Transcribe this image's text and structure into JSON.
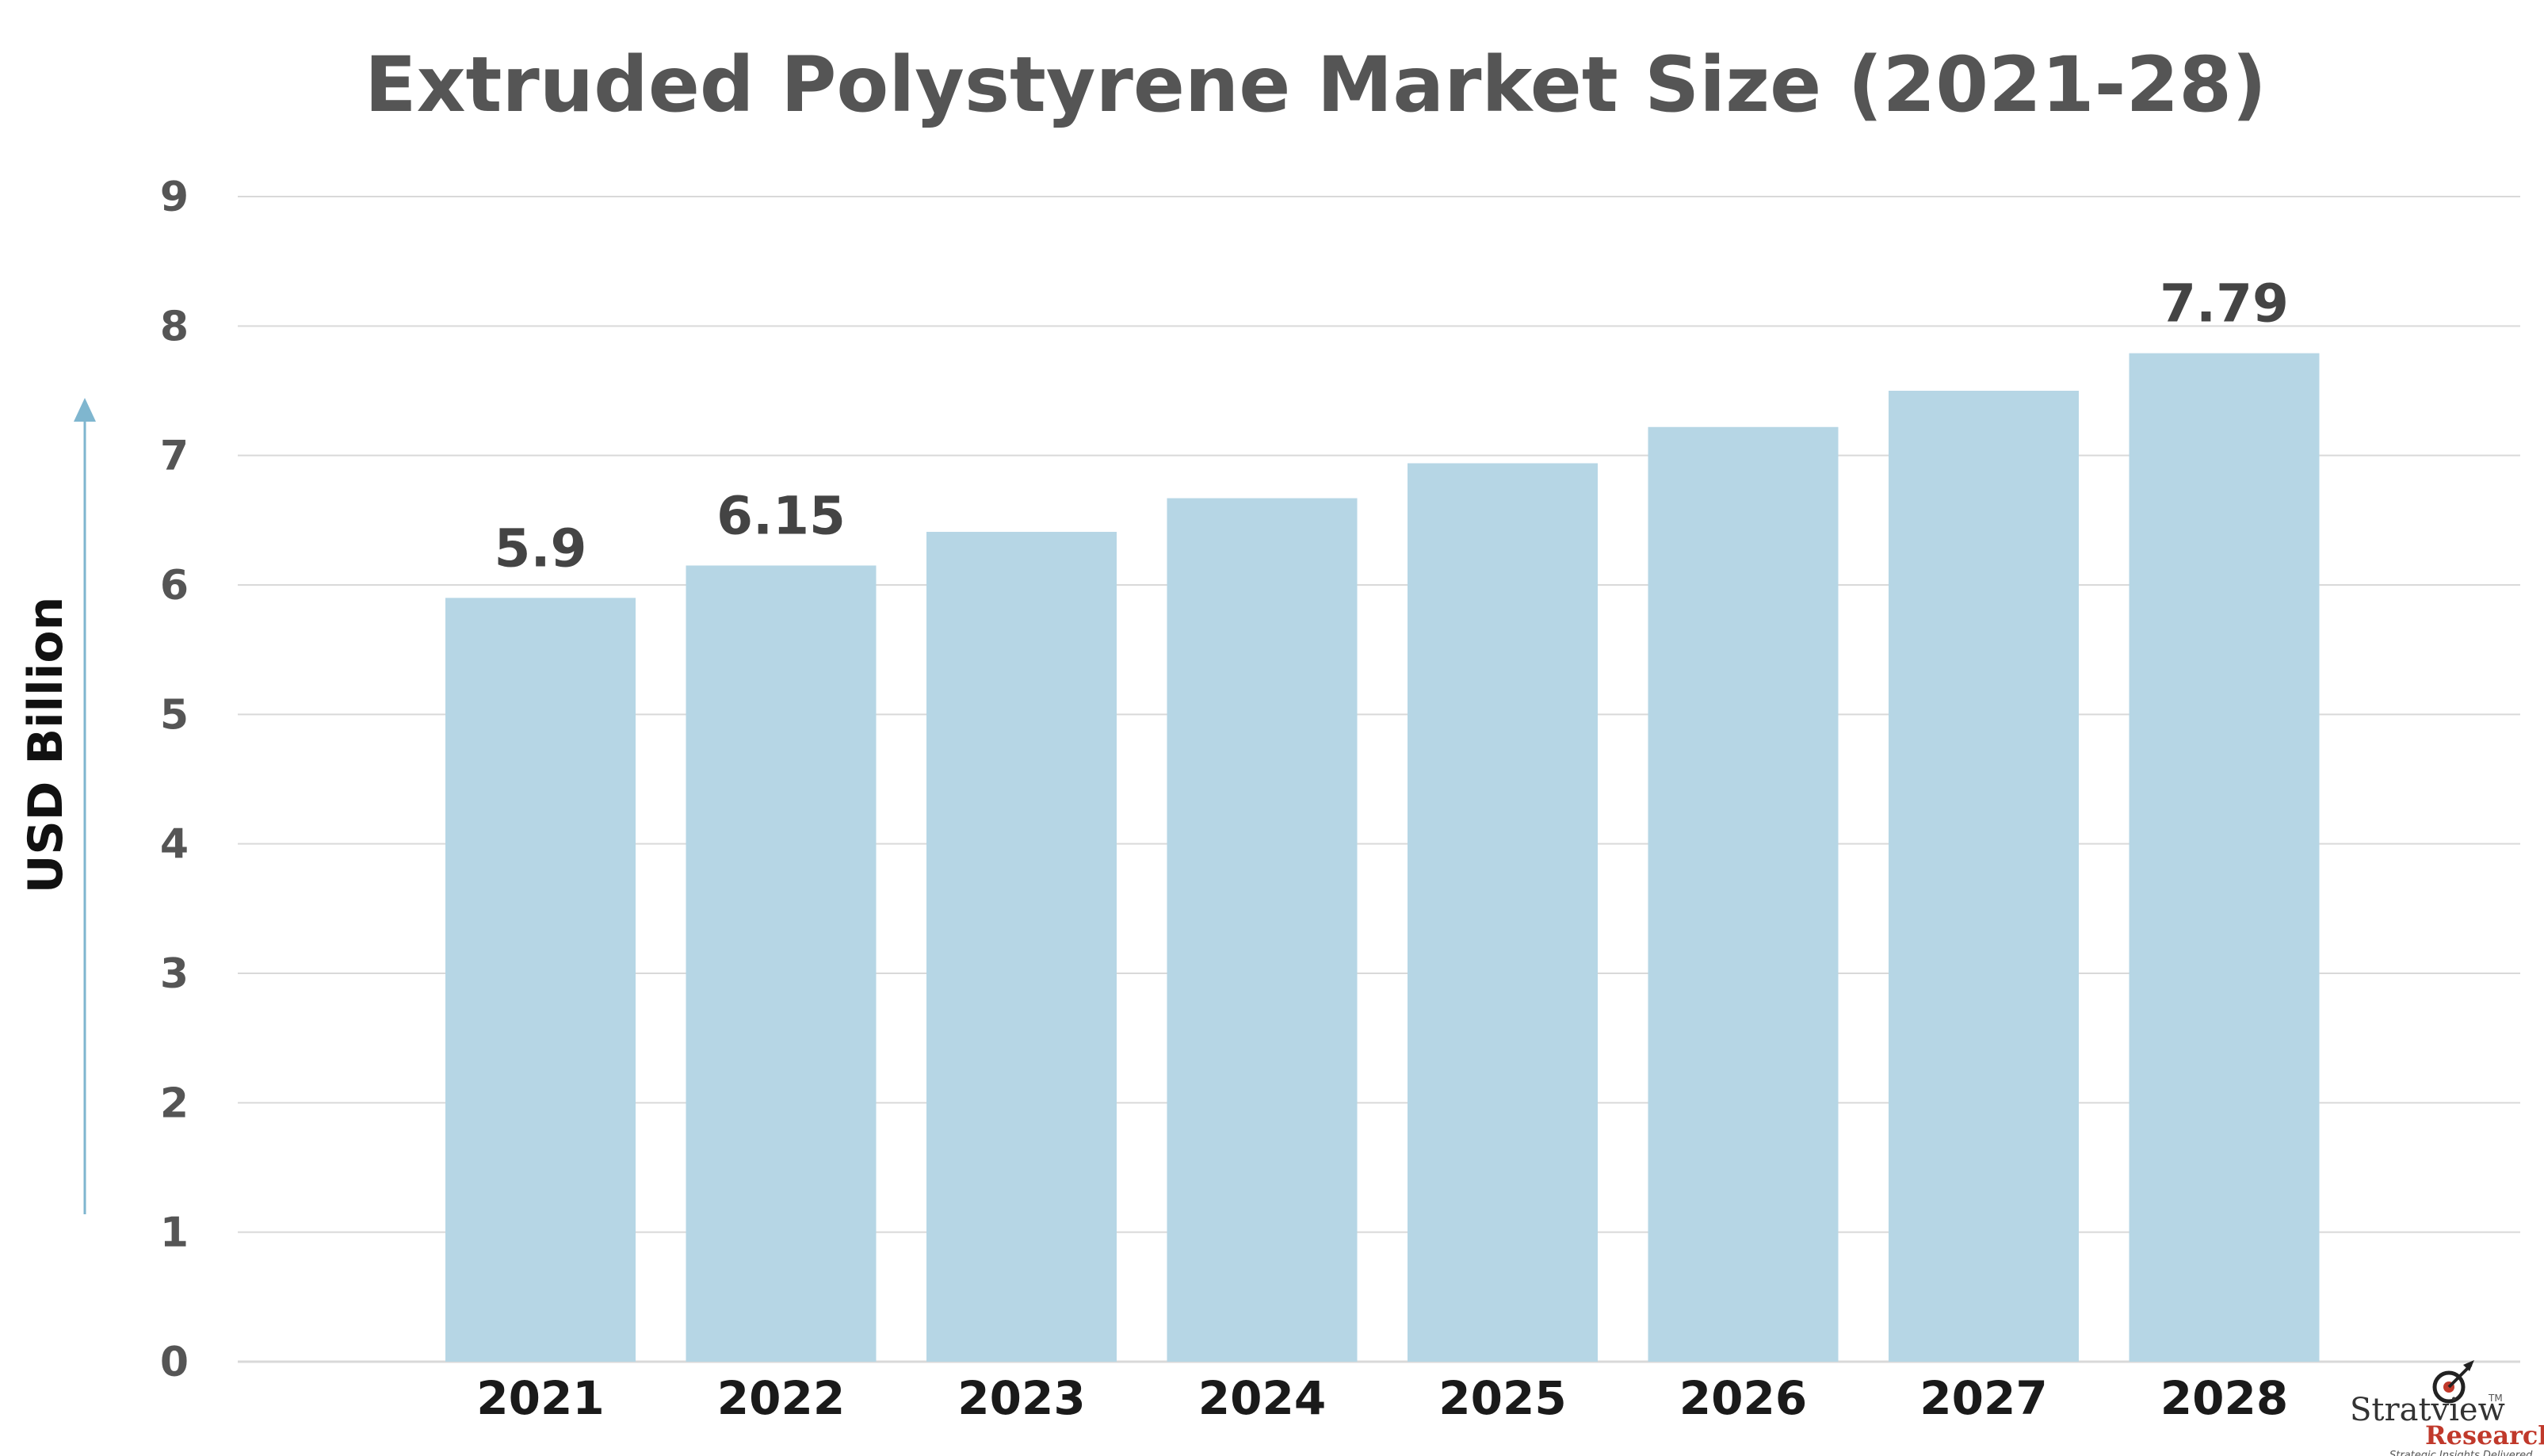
{
  "chart_data": {
    "type": "bar",
    "title": "Extruded Polystyrene Market Size (2021-28)",
    "ylabel": "USD Billion",
    "xlabel": "",
    "categories": [
      "2021",
      "2022",
      "2023",
      "2024",
      "2025",
      "2026",
      "2027",
      "2028"
    ],
    "values": [
      5.9,
      6.15,
      6.41,
      6.67,
      6.94,
      7.22,
      7.5,
      7.79
    ],
    "data_labels": [
      "5.9",
      "6.15",
      "",
      "",
      "",
      "",
      "",
      "7.79"
    ],
    "ylim": [
      0,
      9
    ],
    "yticks": [
      "0",
      "1",
      "2",
      "3",
      "4",
      "5",
      "6",
      "7",
      "8",
      "9"
    ],
    "grid": true,
    "bar_color": "#b6d6e5",
    "grid_color": "#d9d9d9",
    "arrow_color": "#7fb6cf"
  },
  "logo": {
    "name": "Stratview",
    "tm": "TM",
    "sub": "Research",
    "tagline": "Strategic Insights Delivered"
  }
}
